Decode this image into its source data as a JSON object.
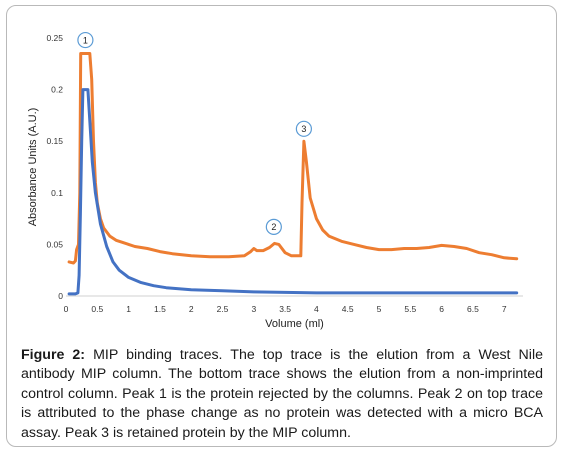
{
  "chart_data": {
    "type": "line",
    "xlabel": "Volume (ml)",
    "ylabel": "Absorbance Units (A.U.)",
    "xlim": [
      0,
      7.3
    ],
    "ylim": [
      0,
      0.25
    ],
    "x_ticks": [
      "0",
      "0.5",
      "1",
      "1.5",
      "2",
      "2.5",
      "3",
      "3.5",
      "4",
      "4.5",
      "5",
      "5.5",
      "6",
      "6.5",
      "7"
    ],
    "y_ticks": [
      "0",
      "0.05",
      "0.1",
      "0.15",
      "0.2",
      "0.25"
    ],
    "series": [
      {
        "color": "#ED7D31",
        "points": [
          [
            0.05,
            0.033
          ],
          [
            0.12,
            0.032
          ],
          [
            0.15,
            0.034
          ],
          [
            0.17,
            0.045
          ],
          [
            0.2,
            0.05
          ],
          [
            0.22,
            0.1
          ],
          [
            0.235,
            0.235
          ],
          [
            0.3,
            0.235
          ],
          [
            0.38,
            0.235
          ],
          [
            0.41,
            0.21
          ],
          [
            0.44,
            0.15
          ],
          [
            0.47,
            0.11
          ],
          [
            0.5,
            0.09
          ],
          [
            0.55,
            0.075
          ],
          [
            0.6,
            0.066
          ],
          [
            0.7,
            0.058
          ],
          [
            0.8,
            0.054
          ],
          [
            0.9,
            0.052
          ],
          [
            1.0,
            0.05
          ],
          [
            1.1,
            0.048
          ],
          [
            1.3,
            0.046
          ],
          [
            1.5,
            0.043
          ],
          [
            1.7,
            0.041
          ],
          [
            2.0,
            0.039
          ],
          [
            2.3,
            0.038
          ],
          [
            2.6,
            0.038
          ],
          [
            2.85,
            0.039
          ],
          [
            2.95,
            0.043
          ],
          [
            3.0,
            0.046
          ],
          [
            3.05,
            0.044
          ],
          [
            3.15,
            0.044
          ],
          [
            3.25,
            0.047
          ],
          [
            3.33,
            0.051
          ],
          [
            3.4,
            0.05
          ],
          [
            3.5,
            0.042
          ],
          [
            3.6,
            0.039
          ],
          [
            3.75,
            0.039
          ],
          [
            3.77,
            0.09
          ],
          [
            3.8,
            0.15
          ],
          [
            3.84,
            0.13
          ],
          [
            3.9,
            0.095
          ],
          [
            4.0,
            0.075
          ],
          [
            4.1,
            0.064
          ],
          [
            4.2,
            0.058
          ],
          [
            4.4,
            0.053
          ],
          [
            4.6,
            0.05
          ],
          [
            4.8,
            0.047
          ],
          [
            5.0,
            0.045
          ],
          [
            5.2,
            0.045
          ],
          [
            5.4,
            0.046
          ],
          [
            5.6,
            0.046
          ],
          [
            5.8,
            0.047
          ],
          [
            6.0,
            0.049
          ],
          [
            6.2,
            0.048
          ],
          [
            6.4,
            0.046
          ],
          [
            6.6,
            0.042
          ],
          [
            6.8,
            0.04
          ],
          [
            7.0,
            0.037
          ],
          [
            7.2,
            0.036
          ]
        ]
      },
      {
        "color": "#4472C4",
        "points": [
          [
            0.05,
            0.002
          ],
          [
            0.15,
            0.002
          ],
          [
            0.19,
            0.003
          ],
          [
            0.21,
            0.02
          ],
          [
            0.23,
            0.08
          ],
          [
            0.25,
            0.15
          ],
          [
            0.27,
            0.2
          ],
          [
            0.35,
            0.2
          ],
          [
            0.38,
            0.17
          ],
          [
            0.42,
            0.13
          ],
          [
            0.47,
            0.1
          ],
          [
            0.55,
            0.07
          ],
          [
            0.65,
            0.048
          ],
          [
            0.75,
            0.033
          ],
          [
            0.85,
            0.025
          ],
          [
            1.0,
            0.018
          ],
          [
            1.2,
            0.013
          ],
          [
            1.4,
            0.01
          ],
          [
            1.6,
            0.008
          ],
          [
            1.8,
            0.007
          ],
          [
            2.0,
            0.006
          ],
          [
            2.5,
            0.005
          ],
          [
            3.0,
            0.004
          ],
          [
            4.0,
            0.003
          ],
          [
            5.0,
            0.003
          ],
          [
            6.0,
            0.003
          ],
          [
            7.0,
            0.003
          ],
          [
            7.2,
            0.003
          ]
        ]
      }
    ],
    "annotations": [
      {
        "label": "1",
        "x": 0.31,
        "y": 0.248
      },
      {
        "label": "2",
        "x": 3.32,
        "y": 0.067
      },
      {
        "label": "3",
        "x": 3.8,
        "y": 0.162
      }
    ]
  },
  "caption": {
    "label": "Figure 2:",
    "text": "MIP binding traces. The top trace is the elution from a West Nile antibody MIP column. The bottom trace shows the elution from a non-imprinted control column. Peak 1 is the protein rejected by the columns. Peak 2 on top trace is attributed to the phase change as no protein was detected with a micro BCA assay. Peak 3 is retained protein by the MIP column."
  }
}
